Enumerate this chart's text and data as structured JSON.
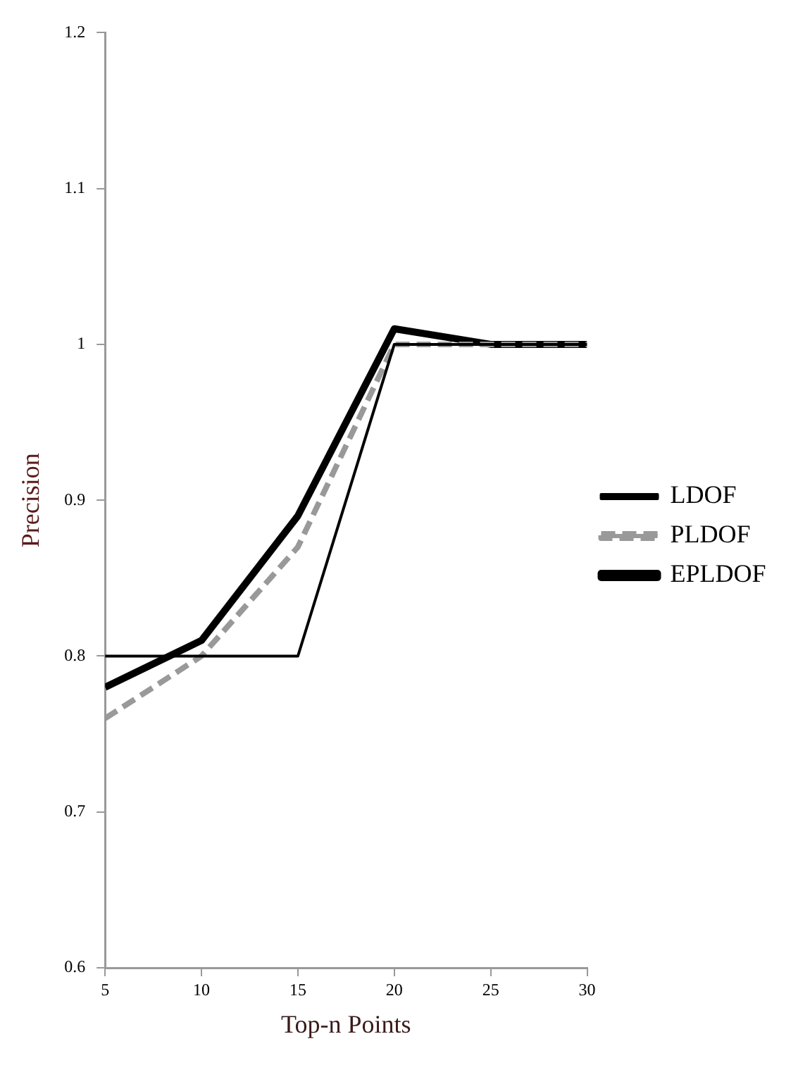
{
  "chart_data": {
    "type": "line",
    "xlabel": "Top-n Points",
    "ylabel": "Precision",
    "x": [
      5,
      10,
      15,
      20,
      25,
      30
    ],
    "xlim": [
      5,
      30
    ],
    "xticks": [
      5,
      10,
      15,
      20,
      25,
      30
    ],
    "ylim": [
      0.6,
      1.2
    ],
    "yticks": [
      0.6,
      0.7,
      0.8,
      0.9,
      1,
      1.1,
      1.2
    ],
    "legend": "right",
    "marker": "none",
    "series": [
      {
        "name": "LDOF",
        "color": "#000000",
        "line_style": "solid",
        "values": [
          0.8,
          0.8,
          0.8,
          1,
          1,
          1
        ]
      },
      {
        "name": "PLDOF",
        "color": "#999999",
        "line_style": "dashed",
        "values": [
          0.76,
          0.8,
          0.87,
          1,
          1,
          1
        ]
      },
      {
        "name": "EPLDOF",
        "color": "#000000",
        "line_style": "solid",
        "values": [
          0.78,
          0.81,
          0.89,
          1.01,
          1,
          1
        ]
      }
    ]
  }
}
